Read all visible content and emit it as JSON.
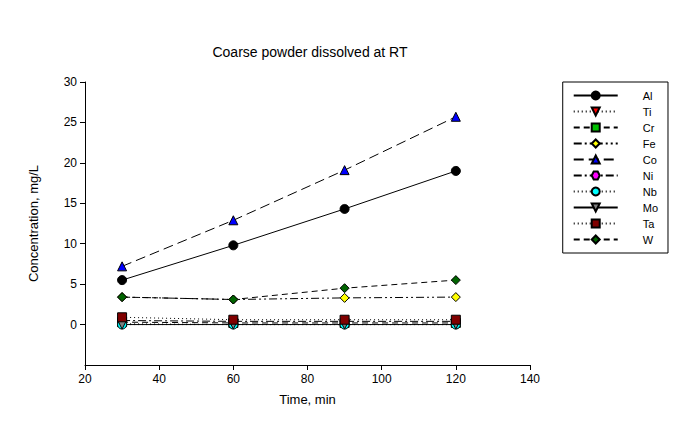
{
  "chart_data": {
    "type": "line",
    "title": "Coarse powder dissolved at RT",
    "x_label": "Time, min",
    "y_label": "Concentration, mg/L",
    "x": [
      30,
      60,
      90,
      120
    ],
    "xlim": [
      20,
      140
    ],
    "xticks": [
      20,
      40,
      60,
      80,
      100,
      120,
      140
    ],
    "ylim": [
      -5,
      30
    ],
    "yticks": [
      0,
      5,
      10,
      15,
      20,
      25,
      30
    ],
    "grid": false,
    "legend": "right",
    "series": [
      {
        "name": "Al",
        "color": "#000000",
        "marker": "circle",
        "line_style": "solid",
        "values": [
          5.5,
          9.8,
          14.3,
          19.0
        ]
      },
      {
        "name": "Ti",
        "color": "#ff0000",
        "marker": "triangle-down",
        "line_style": "dotted",
        "values": [
          0.1,
          0.0,
          0.0,
          0.0
        ]
      },
      {
        "name": "Cr",
        "color": "#00c000",
        "marker": "square",
        "line_style": "dashed",
        "values": [
          0.3,
          0.2,
          0.2,
          0.2
        ]
      },
      {
        "name": "Fe",
        "color": "#ffff00",
        "marker": "diamond",
        "line_style": "dashdotdot",
        "values": [
          3.4,
          3.1,
          3.3,
          3.4
        ]
      },
      {
        "name": "Co",
        "color": "#0000ff",
        "marker": "triangle",
        "line_style": "longdash",
        "values": [
          7.2,
          12.9,
          19.1,
          25.7
        ]
      },
      {
        "name": "Ni",
        "color": "#ff00ff",
        "marker": "hexagon",
        "line_style": "dashdot",
        "values": [
          0.5,
          0.4,
          0.4,
          0.4
        ]
      },
      {
        "name": "Nb",
        "color": "#00ffff",
        "marker": "circle",
        "line_style": "dotted",
        "values": [
          0.0,
          0.0,
          0.0,
          0.0
        ]
      },
      {
        "name": "Mo",
        "color": "#808080",
        "marker": "triangle-down",
        "line_style": "solid",
        "values": [
          0.0,
          0.0,
          0.0,
          0.0
        ]
      },
      {
        "name": "Ta",
        "color": "#800000",
        "marker": "square",
        "line_style": "dotted",
        "values": [
          0.9,
          0.6,
          0.6,
          0.6
        ]
      },
      {
        "name": "W",
        "color": "#006400",
        "marker": "diamond",
        "line_style": "dashed",
        "values": [
          3.4,
          3.1,
          4.5,
          5.5
        ]
      }
    ]
  }
}
